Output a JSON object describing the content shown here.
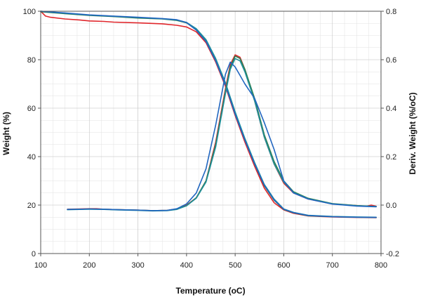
{
  "chart_data": {
    "type": "line",
    "title": "",
    "xlabel": "Temperature (oC)",
    "ylabel_left": "Weight (%)",
    "ylabel_right": "Deriv. Weight (%/oC)",
    "xlim": [
      100,
      800
    ],
    "ylim_left": [
      0,
      100
    ],
    "ylim_right": [
      -0.2,
      0.8
    ],
    "x_ticks": [
      100,
      200,
      300,
      400,
      500,
      600,
      700,
      800
    ],
    "y_left_ticks": [
      0,
      20,
      40,
      60,
      80,
      100
    ],
    "y_right_ticks": [
      -0.2,
      0.0,
      0.2,
      0.4,
      0.6,
      0.8
    ],
    "grid": true,
    "colors": {
      "red": "#e0262b",
      "green": "#2e7d4f",
      "teal": "#1f8f9a",
      "blue": "#2166c0"
    },
    "series": [
      {
        "kind": "weight",
        "axis": "left",
        "color": "#e0262b",
        "x": [
          100,
          110,
          120,
          150,
          180,
          200,
          230,
          250,
          300,
          350,
          380,
          400,
          420,
          440,
          460,
          480,
          500,
          520,
          540,
          560,
          580,
          600,
          620,
          650,
          700,
          750,
          790
        ],
        "y": [
          100,
          98,
          97.5,
          96.8,
          96.4,
          96,
          95.8,
          95.5,
          95.2,
          94.8,
          94.2,
          93.5,
          91.5,
          87,
          79,
          69,
          57,
          46,
          36,
          27,
          21,
          18,
          16.6,
          15.5,
          15.1,
          14.9,
          14.8
        ]
      },
      {
        "kind": "weight",
        "axis": "left",
        "color": "#2e7d4f",
        "x": [
          100,
          150,
          200,
          250,
          300,
          350,
          380,
          400,
          420,
          440,
          460,
          480,
          500,
          520,
          540,
          560,
          580,
          600,
          620,
          650,
          700,
          750,
          790
        ],
        "y": [
          99.8,
          99,
          98.3,
          97.8,
          97.2,
          96.8,
          96.2,
          95.2,
          92.5,
          88,
          80,
          70,
          58,
          47,
          37,
          28,
          22,
          18.2,
          16.8,
          15.6,
          15.2,
          15,
          14.9
        ]
      },
      {
        "kind": "weight",
        "axis": "left",
        "color": "#1f8f9a",
        "x": [
          100,
          150,
          200,
          250,
          300,
          350,
          380,
          400,
          420,
          440,
          460,
          480,
          500,
          520,
          540,
          560,
          580,
          600,
          620,
          650,
          700,
          750,
          790
        ],
        "y": [
          100,
          99.2,
          98.4,
          97.9,
          97.4,
          96.9,
          96.4,
          95.4,
          92.8,
          88.3,
          80.5,
          70.5,
          58.5,
          47.5,
          37.5,
          28.5,
          22.5,
          18.4,
          17,
          15.8,
          15.3,
          15.1,
          15
        ]
      },
      {
        "kind": "weight",
        "axis": "left",
        "color": "#2166c0",
        "x": [
          100,
          150,
          200,
          250,
          300,
          350,
          380,
          400,
          420,
          440,
          460,
          480,
          500,
          520,
          540,
          560,
          580,
          600,
          620,
          650,
          700,
          750,
          790
        ],
        "y": [
          100,
          99.3,
          98.5,
          98,
          97.5,
          97,
          96.5,
          95.3,
          92.2,
          87.5,
          79.5,
          69.5,
          57.5,
          46.8,
          37,
          28.2,
          22.2,
          18.3,
          16.9,
          15.7,
          15.2,
          15,
          14.9
        ]
      },
      {
        "kind": "derivative",
        "axis": "right",
        "color": "#e0262b",
        "x": [
          155,
          180,
          200,
          215,
          230,
          260,
          300,
          330,
          360,
          380,
          400,
          420,
          440,
          460,
          480,
          490,
          500,
          510,
          520,
          540,
          560,
          580,
          600,
          620,
          650,
          700,
          750,
          770,
          780,
          790
        ],
        "y": [
          -0.017,
          -0.016,
          -0.015,
          -0.015,
          -0.017,
          -0.019,
          -0.021,
          -0.023,
          -0.022,
          -0.016,
          0.0,
          0.03,
          0.1,
          0.26,
          0.48,
          0.58,
          0.62,
          0.61,
          0.56,
          0.43,
          0.28,
          0.17,
          0.09,
          0.05,
          0.025,
          0.005,
          -0.002,
          -0.005,
          0.0,
          -0.005
        ]
      },
      {
        "kind": "derivative",
        "axis": "right",
        "color": "#2e7d4f",
        "x": [
          155,
          180,
          200,
          230,
          260,
          300,
          330,
          360,
          380,
          400,
          420,
          440,
          460,
          480,
          490,
          500,
          510,
          520,
          540,
          560,
          580,
          600,
          620,
          650,
          700,
          750,
          790
        ],
        "y": [
          -0.018,
          -0.017,
          -0.016,
          -0.017,
          -0.019,
          -0.021,
          -0.023,
          -0.022,
          -0.017,
          -0.002,
          0.03,
          0.1,
          0.25,
          0.47,
          0.57,
          0.615,
          0.605,
          0.56,
          0.44,
          0.29,
          0.18,
          0.1,
          0.055,
          0.028,
          0.006,
          -0.002,
          -0.006
        ]
      },
      {
        "kind": "derivative",
        "axis": "right",
        "color": "#1f8f9a",
        "x": [
          155,
          180,
          200,
          230,
          260,
          300,
          330,
          360,
          380,
          400,
          420,
          440,
          460,
          480,
          490,
          500,
          510,
          520,
          540,
          560,
          580,
          600,
          620,
          650,
          700,
          750,
          790
        ],
        "y": [
          -0.019,
          -0.018,
          -0.017,
          -0.018,
          -0.02,
          -0.022,
          -0.024,
          -0.023,
          -0.018,
          -0.003,
          0.028,
          0.095,
          0.24,
          0.46,
          0.56,
          0.605,
          0.595,
          0.55,
          0.43,
          0.28,
          0.17,
          0.095,
          0.052,
          0.026,
          0.005,
          -0.003,
          -0.006
        ]
      },
      {
        "kind": "derivative",
        "axis": "right",
        "color": "#2166c0",
        "x": [
          155,
          180,
          200,
          230,
          260,
          300,
          330,
          360,
          380,
          400,
          420,
          440,
          460,
          480,
          490,
          500,
          510,
          520,
          540,
          560,
          580,
          600,
          620,
          650,
          700,
          750,
          790
        ],
        "y": [
          -0.018,
          -0.017,
          -0.016,
          -0.017,
          -0.019,
          -0.021,
          -0.023,
          -0.022,
          -0.015,
          0.005,
          0.05,
          0.15,
          0.33,
          0.54,
          0.59,
          0.57,
          0.535,
          0.5,
          0.44,
          0.34,
          0.23,
          0.1,
          0.05,
          0.025,
          0.004,
          -0.004,
          -0.007
        ]
      }
    ]
  }
}
